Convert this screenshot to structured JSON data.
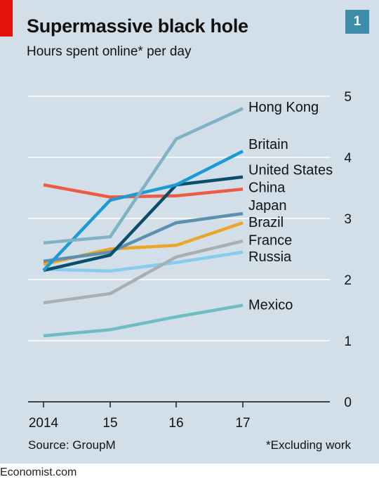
{
  "header": {
    "title": "Supermassive black hole",
    "subtitle": "Hours spent online* per day",
    "chart_number": "1"
  },
  "footer": {
    "source": "Source: GroupM",
    "footnote": "*Excluding work",
    "publisher": "Economist.com"
  },
  "colors": {
    "panel_background": "#d3dfe8",
    "red_tag": "#e3120b",
    "number_box": "#3b8da9",
    "gridline": "#ffffff",
    "axis": "#111111"
  },
  "chart_data": {
    "type": "line",
    "title": "Supermassive black hole",
    "subtitle": "Hours spent online* per day",
    "x": [
      "2014",
      "15",
      "16",
      "17"
    ],
    "ylim": [
      0,
      5
    ],
    "yticks": [
      0,
      1,
      2,
      3,
      4,
      5
    ],
    "y_axis_side": "right",
    "grid": true,
    "legend": "direct labels at line ends",
    "series": [
      {
        "name": "Hong Kong",
        "color": "#7fb2c5",
        "values": [
          2.6,
          2.7,
          4.3,
          4.8
        ]
      },
      {
        "name": "Britain",
        "color": "#1b9ad6",
        "values": [
          2.15,
          3.3,
          3.55,
          4.1
        ]
      },
      {
        "name": "United States",
        "color": "#0b4e6b",
        "values": [
          2.15,
          2.4,
          3.55,
          3.68
        ]
      },
      {
        "name": "China",
        "color": "#ee5a45",
        "values": [
          3.55,
          3.35,
          3.37,
          3.48
        ]
      },
      {
        "name": "Japan",
        "color": "#5d8fae",
        "values": [
          2.3,
          2.45,
          2.93,
          3.08
        ]
      },
      {
        "name": "Brazil",
        "color": "#eea425",
        "values": [
          2.25,
          2.5,
          2.56,
          2.93
        ]
      },
      {
        "name": "France",
        "color": "#a9aeb3",
        "values": [
          1.62,
          1.77,
          2.37,
          2.63
        ]
      },
      {
        "name": "Russia",
        "color": "#87cbee",
        "values": [
          2.17,
          2.14,
          2.28,
          2.45
        ]
      },
      {
        "name": "Mexico",
        "color": "#6cbec1",
        "values": [
          1.08,
          1.18,
          1.39,
          1.58
        ]
      }
    ],
    "label_y": {
      "Hong Kong": 4.81,
      "Britain": 4.2,
      "United States": 3.78,
      "China": 3.49,
      "Japan": 3.2,
      "Brazil": 2.92,
      "France": 2.63,
      "Russia": 2.36,
      "Mexico": 1.57
    }
  }
}
